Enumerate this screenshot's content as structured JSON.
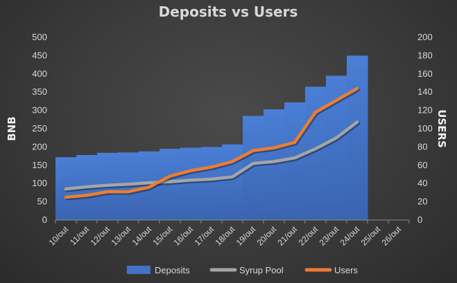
{
  "chart_data": {
    "type": "area",
    "title": "Deposits vs Users",
    "ylabel": "BNB",
    "y2label": "USERS",
    "categories": [
      "10/out",
      "11/out",
      "12/out",
      "13/out",
      "14/out",
      "15/out",
      "16/out",
      "17/out",
      "18/out",
      "19/out",
      "20/out",
      "21/out",
      "22/out",
      "23/out",
      "24/out",
      "25/out",
      "26/out"
    ],
    "ylim": [
      0,
      500
    ],
    "y2lim": [
      0,
      200
    ],
    "yticks": [
      0,
      50,
      100,
      150,
      200,
      250,
      300,
      350,
      400,
      450,
      500
    ],
    "y2ticks": [
      0,
      20,
      40,
      60,
      80,
      100,
      120,
      140,
      160,
      180,
      200
    ],
    "legend_position": "bottom",
    "grid": false,
    "series": [
      {
        "name": "Deposits",
        "type": "step-area",
        "axis": "left",
        "color": "#4472c4",
        "values": [
          172,
          178,
          184,
          185,
          188,
          195,
          198,
          200,
          207,
          285,
          303,
          322,
          365,
          395,
          450,
          null,
          null
        ]
      },
      {
        "name": "Syrup Pool",
        "type": "line",
        "axis": "left",
        "color": "#a5a5a5",
        "values": [
          85,
          91,
          95,
          98,
          102,
          105,
          109,
          112,
          118,
          155,
          160,
          170,
          195,
          225,
          268,
          null,
          null
        ]
      },
      {
        "name": "Users",
        "type": "line",
        "axis": "right",
        "color": "#ed7d31",
        "values": [
          25,
          27,
          31,
          31,
          36,
          48,
          54,
          58,
          64,
          76,
          79,
          85,
          118,
          131,
          144,
          null,
          null
        ]
      }
    ]
  }
}
